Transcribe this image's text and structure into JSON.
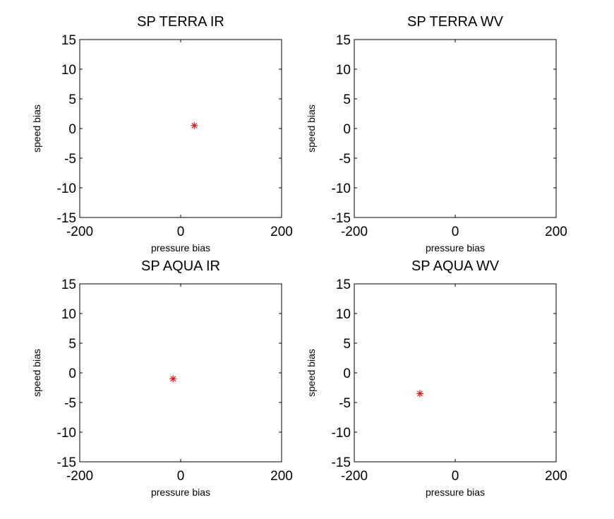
{
  "chart_data": [
    {
      "type": "scatter",
      "title": "SP TERRA IR",
      "xlabel": "pressure bias",
      "ylabel": "speed bias",
      "xlim": [
        -200,
        200
      ],
      "ylim": [
        -15,
        15
      ],
      "xticks": [
        -200,
        0,
        200
      ],
      "yticks": [
        15,
        10,
        5,
        0,
        -5,
        -10,
        -15
      ],
      "marker": "*",
      "marker_color": "#e8141a",
      "points": [
        {
          "x": 27,
          "y": 0.5
        }
      ]
    },
    {
      "type": "scatter",
      "title": "SP TERRA WV",
      "xlabel": "pressure bias",
      "ylabel": "speed bias",
      "xlim": [
        -200,
        200
      ],
      "ylim": [
        -15,
        15
      ],
      "xticks": [
        -200,
        0,
        200
      ],
      "yticks": [
        15,
        10,
        5,
        0,
        -5,
        -10,
        -15
      ],
      "marker": "*",
      "marker_color": "#e8141a",
      "points": []
    },
    {
      "type": "scatter",
      "title": "SP AQUA IR",
      "xlabel": "pressure bias",
      "ylabel": "speed bias",
      "xlim": [
        -200,
        200
      ],
      "ylim": [
        -15,
        15
      ],
      "xticks": [
        -200,
        0,
        200
      ],
      "yticks": [
        15,
        10,
        5,
        0,
        -5,
        -10,
        -15
      ],
      "marker": "*",
      "marker_color": "#e8141a",
      "points": [
        {
          "x": -15,
          "y": -1
        }
      ]
    },
    {
      "type": "scatter",
      "title": "SP AQUA WV",
      "xlabel": "pressure bias",
      "ylabel": "speed bias",
      "xlim": [
        -200,
        200
      ],
      "ylim": [
        -15,
        15
      ],
      "xticks": [
        -200,
        0,
        200
      ],
      "yticks": [
        15,
        10,
        5,
        0,
        -5,
        -10,
        -15
      ],
      "marker": "*",
      "marker_color": "#e8141a",
      "points": [
        {
          "x": -70,
          "y": -3.5
        }
      ]
    }
  ]
}
